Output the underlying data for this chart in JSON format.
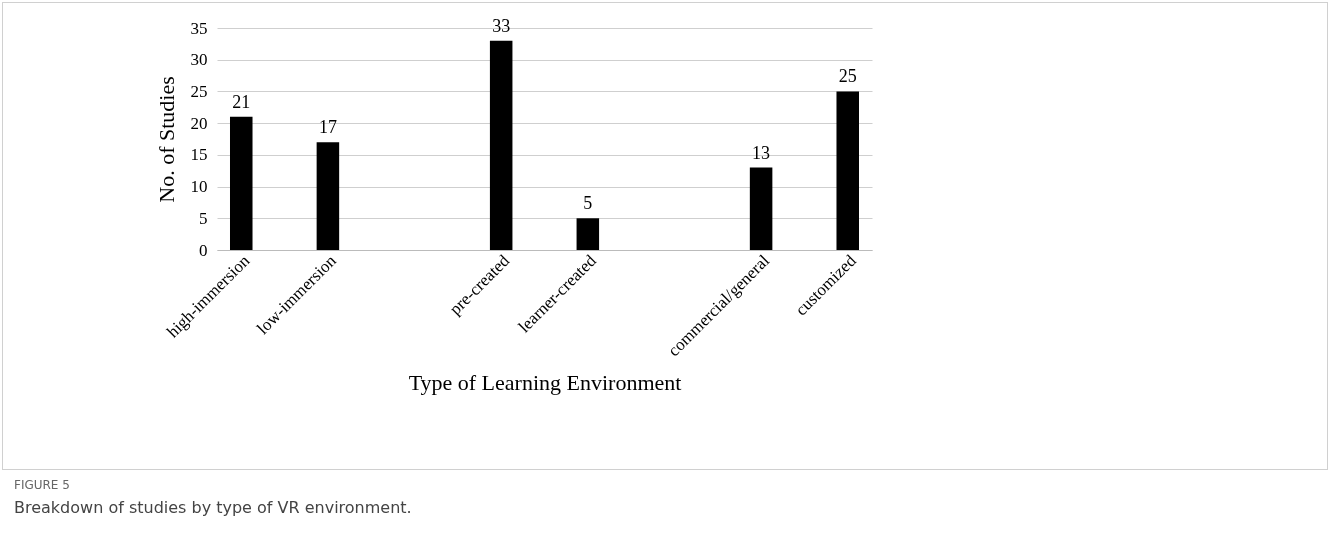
{
  "chart_data": {
    "type": "bar",
    "xlabel": "Type of Learning Environment",
    "ylabel": "No. of Studies",
    "categories": [
      "high-immersion",
      "low-immersion",
      null,
      "pre-created",
      "learner-created",
      null,
      "commercial/general",
      "customized"
    ],
    "values": [
      21,
      17,
      null,
      33,
      5,
      null,
      13,
      25
    ],
    "color": "#000000",
    "ylim": [
      0,
      35
    ],
    "yticks": [
      0,
      5,
      10,
      15,
      20,
      25,
      30,
      35
    ],
    "grid": "y",
    "data_labels": true,
    "annotations": [
      "FIGURE 5",
      "Breakdown of studies by type of VR environment."
    ]
  }
}
